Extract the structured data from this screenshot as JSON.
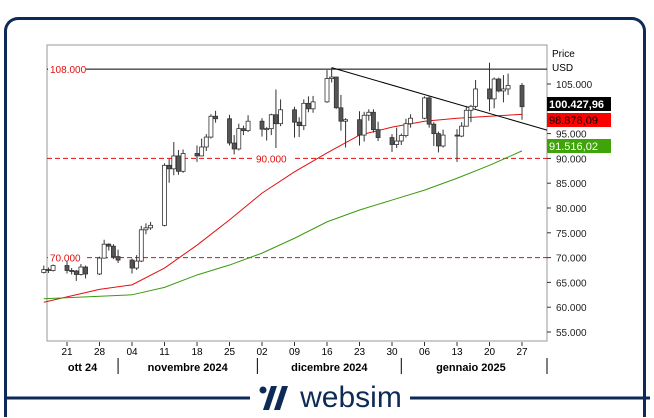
{
  "brand": {
    "name": "websim",
    "color": "#0e2b57"
  },
  "chart_data": {
    "type": "candlestick",
    "ylabel": "Price",
    "unit": "USD",
    "ylim": [
      53000,
      114000
    ],
    "yticks": [
      55000,
      60000,
      65000,
      70000,
      75000,
      80000,
      85000,
      90000,
      95000,
      105000
    ],
    "ytick_labels": [
      "55.000",
      "60.000",
      "65.000",
      "70.000",
      "75.000",
      "80.000",
      "85.000",
      "90.000",
      "95.000",
      "105.000"
    ],
    "xticks": [
      {
        "date": "2024-10-21",
        "label": "21"
      },
      {
        "date": "2024-10-28",
        "label": "28"
      },
      {
        "date": "2024-11-04",
        "label": "04"
      },
      {
        "date": "2024-11-11",
        "label": "11"
      },
      {
        "date": "2024-11-18",
        "label": "18"
      },
      {
        "date": "2024-11-25",
        "label": "25"
      },
      {
        "date": "2024-12-02",
        "label": "02"
      },
      {
        "date": "2024-12-09",
        "label": "09"
      },
      {
        "date": "2024-12-16",
        "label": "16"
      },
      {
        "date": "2024-12-23",
        "label": "23"
      },
      {
        "date": "2024-12-30",
        "label": "30"
      },
      {
        "date": "2025-01-06",
        "label": "06"
      },
      {
        "date": "2025-01-13",
        "label": "13"
      },
      {
        "date": "2025-01-20",
        "label": "20"
      },
      {
        "date": "2025-01-27",
        "label": "27"
      }
    ],
    "months": [
      {
        "label": "ott 24",
        "start": "2024-10-16",
        "end": "2024-11-01"
      },
      {
        "label": "novembre 2024",
        "start": "2024-11-01",
        "end": "2024-12-01"
      },
      {
        "label": "dicembre 2024",
        "start": "2024-12-01",
        "end": "2025-01-01"
      },
      {
        "label": "gennaio 2025",
        "start": "2025-01-01",
        "end": "2025-01-31"
      }
    ],
    "candles": [
      [
        "2024-10-16",
        67000,
        68400,
        66800,
        67600
      ],
      [
        "2024-10-17",
        67600,
        68000,
        66900,
        67400
      ],
      [
        "2024-10-18",
        67400,
        68600,
        67200,
        68400
      ],
      [
        "2024-10-21",
        68400,
        69300,
        66800,
        67400
      ],
      [
        "2024-10-22",
        67400,
        67900,
        66600,
        67300
      ],
      [
        "2024-10-23",
        67300,
        67500,
        65300,
        66600
      ],
      [
        "2024-10-24",
        66600,
        68700,
        66400,
        68100
      ],
      [
        "2024-10-25",
        68100,
        68400,
        65800,
        66700
      ],
      [
        "2024-10-28",
        66700,
        70200,
        66500,
        69900
      ],
      [
        "2024-10-29",
        69900,
        73600,
        69800,
        72700
      ],
      [
        "2024-10-30",
        72700,
        72900,
        71400,
        72300
      ],
      [
        "2024-10-31",
        72300,
        72700,
        69700,
        70200
      ],
      [
        "2024-11-01",
        70200,
        71600,
        68900,
        69500
      ],
      [
        "2024-11-04",
        69500,
        69800,
        66800,
        67900
      ],
      [
        "2024-11-05",
        67900,
        70500,
        67500,
        69300
      ],
      [
        "2024-11-06",
        69300,
        76400,
        69100,
        75600
      ],
      [
        "2024-11-07",
        75600,
        76900,
        74700,
        76000
      ],
      [
        "2024-11-08",
        76000,
        77200,
        75600,
        76500
      ],
      [
        "2024-11-11",
        76500,
        89000,
        76300,
        88600
      ],
      [
        "2024-11-12",
        88600,
        89900,
        85100,
        87900
      ],
      [
        "2024-11-13",
        87900,
        93300,
        86600,
        90500
      ],
      [
        "2024-11-14",
        90500,
        91700,
        86700,
        87400
      ],
      [
        "2024-11-15",
        87400,
        91800,
        87100,
        91000
      ],
      [
        "2024-11-18",
        91000,
        92600,
        89300,
        90500
      ],
      [
        "2024-11-19",
        90500,
        94000,
        90400,
        92300
      ],
      [
        "2024-11-20",
        92300,
        94900,
        91500,
        94300
      ],
      [
        "2024-11-21",
        94300,
        98900,
        94000,
        98500
      ],
      [
        "2024-11-22",
        98500,
        99600,
        97200,
        98000
      ],
      [
        "2024-11-25",
        98000,
        98800,
        92600,
        93100
      ],
      [
        "2024-11-26",
        93100,
        94700,
        90800,
        91900
      ],
      [
        "2024-11-27",
        91900,
        97000,
        91600,
        96000
      ],
      [
        "2024-11-28",
        96000,
        96600,
        94700,
        95600
      ],
      [
        "2024-11-29",
        95600,
        98700,
        95300,
        97500
      ],
      [
        "2024-12-02",
        97500,
        98100,
        94400,
        95900
      ],
      [
        "2024-12-03",
        95900,
        96300,
        93600,
        96000
      ],
      [
        "2024-12-04",
        96000,
        99000,
        94700,
        98800
      ],
      [
        "2024-12-05",
        98800,
        103900,
        92100,
        97000
      ],
      [
        "2024-12-06",
        97000,
        101900,
        96500,
        99800
      ],
      [
        "2024-12-09",
        99800,
        100400,
        94200,
        97300
      ],
      [
        "2024-12-10",
        97300,
        98300,
        94300,
        96600
      ],
      [
        "2024-12-11",
        96600,
        101900,
        95700,
        101100
      ],
      [
        "2024-12-12",
        101100,
        102500,
        99300,
        100000
      ],
      [
        "2024-12-13",
        100000,
        102600,
        99200,
        101400
      ],
      [
        "2024-12-16",
        101400,
        107800,
        101200,
        106100
      ],
      [
        "2024-12-17",
        106100,
        108300,
        105300,
        106400
      ],
      [
        "2024-12-18",
        106400,
        106500,
        100000,
        100200
      ],
      [
        "2024-12-19",
        100200,
        102800,
        95600,
        97500
      ],
      [
        "2024-12-20",
        97500,
        98100,
        92200,
        97800
      ],
      [
        "2024-12-23",
        97800,
        99500,
        92600,
        94700
      ],
      [
        "2024-12-24",
        94700,
        99400,
        93400,
        98700
      ],
      [
        "2024-12-25",
        98700,
        99900,
        97600,
        99300
      ],
      [
        "2024-12-26",
        99300,
        99900,
        95200,
        95800
      ],
      [
        "2024-12-27",
        95800,
        97400,
        93500,
        94200
      ],
      [
        "2024-12-30",
        94200,
        94900,
        91300,
        92800
      ],
      [
        "2024-12-31",
        92800,
        96200,
        92100,
        93500
      ],
      [
        "2025-01-01",
        93500,
        95000,
        92700,
        94600
      ],
      [
        "2025-01-02",
        94600,
        98000,
        94200,
        97000
      ],
      [
        "2025-01-03",
        97000,
        98900,
        96200,
        98100
      ],
      [
        "2025-01-06",
        98100,
        102500,
        97900,
        102200
      ],
      [
        "2025-01-07",
        102200,
        102700,
        96200,
        96900
      ],
      [
        "2025-01-08",
        96900,
        97300,
        92500,
        95000
      ],
      [
        "2025-01-09",
        95000,
        95400,
        91200,
        92500
      ],
      [
        "2025-01-10",
        92500,
        95800,
        92200,
        94700
      ],
      [
        "2025-01-13",
        94700,
        95900,
        89300,
        94500
      ],
      [
        "2025-01-14",
        94500,
        97300,
        94300,
        96500
      ],
      [
        "2025-01-15",
        96500,
        100600,
        96400,
        99700
      ],
      [
        "2025-01-16",
        99700,
        100800,
        97300,
        100500
      ],
      [
        "2025-01-17",
        100500,
        105800,
        100100,
        104000
      ],
      [
        "2025-01-20",
        104000,
        109300,
        99500,
        102000
      ],
      [
        "2025-01-21",
        102000,
        106300,
        100100,
        106000
      ],
      [
        "2025-01-22",
        106000,
        106300,
        103300,
        103600
      ],
      [
        "2025-01-23",
        103600,
        106800,
        101300,
        104000
      ],
      [
        "2025-01-24",
        104000,
        107100,
        102800,
        104700
      ],
      [
        "2025-01-27",
        104700,
        105200,
        97800,
        100428
      ]
    ],
    "series": [
      {
        "type": "line",
        "color": "#e01010",
        "last_label": "98.878,09",
        "points": [
          [
            "2024-10-16",
            61000
          ],
          [
            "2024-10-28",
            63600
          ],
          [
            "2024-11-04",
            64500
          ],
          [
            "2024-11-11",
            67900
          ],
          [
            "2024-11-18",
            72500
          ],
          [
            "2024-11-25",
            77600
          ],
          [
            "2024-12-02",
            83000
          ],
          [
            "2024-12-09",
            87300
          ],
          [
            "2024-12-16",
            91100
          ],
          [
            "2024-12-23",
            94700
          ],
          [
            "2024-12-30",
            96300
          ],
          [
            "2025-01-06",
            97500
          ],
          [
            "2025-01-13",
            98100
          ],
          [
            "2025-01-20",
            98500
          ],
          [
            "2025-01-27",
            98878
          ]
        ]
      },
      {
        "type": "line",
        "color": "#3a9a10",
        "last_label": "91.516,02",
        "points": [
          [
            "2024-10-16",
            61700
          ],
          [
            "2024-11-04",
            62500
          ],
          [
            "2024-11-11",
            64000
          ],
          [
            "2024-11-18",
            66500
          ],
          [
            "2024-11-25",
            68500
          ],
          [
            "2024-12-02",
            70900
          ],
          [
            "2024-12-09",
            73900
          ],
          [
            "2024-12-16",
            77200
          ],
          [
            "2024-12-23",
            79600
          ],
          [
            "2024-12-30",
            81600
          ],
          [
            "2025-01-06",
            83600
          ],
          [
            "2025-01-13",
            86000
          ],
          [
            "2025-01-20",
            88600
          ],
          [
            "2025-01-27",
            91516
          ]
        ]
      }
    ],
    "last_price_label": "100.427,96",
    "hlines": [
      {
        "value": 108000,
        "label": "108.000",
        "style": "solid",
        "color": "#000000",
        "label_color": "#e01010"
      },
      {
        "value": 90000,
        "label": "90.000",
        "style": "dashed",
        "color": "#e01010",
        "label_color": "#e01010"
      },
      {
        "value": 70000,
        "label": "70.000",
        "style": "dashed",
        "color": "#e01010",
        "label_color": "#e01010"
      }
    ],
    "trendline": {
      "from": [
        "2024-12-17",
        108300
      ],
      "to": [
        "2025-01-31",
        95700
      ],
      "color": "#000000"
    }
  }
}
